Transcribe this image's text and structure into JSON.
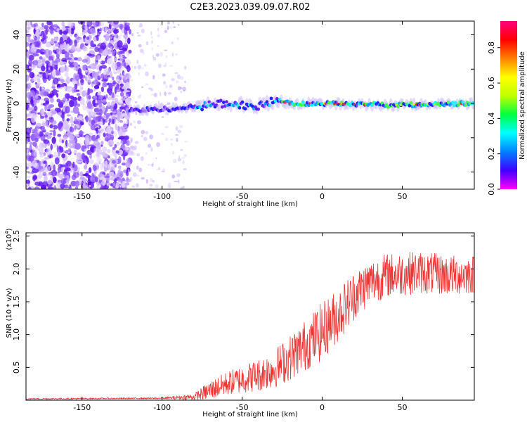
{
  "title": "C2E3.2023.039.09.07.R02",
  "chart_data": [
    {
      "type": "heatmap",
      "xlabel": "Height of straight line (km)",
      "ylabel": "Frequency (Hz)",
      "xlim": [
        -185,
        95
      ],
      "ylim": [
        -50,
        48
      ],
      "xticks": [
        -150,
        -100,
        -50,
        0,
        50
      ],
      "yticks": [
        -40,
        -20,
        0,
        20,
        40
      ],
      "colorbar": {
        "label": "Normalized spectral amplitude",
        "range": [
          0,
          0.95
        ],
        "ticks": [
          "0.0",
          "0.2",
          "0.4",
          "0.6",
          "0.8"
        ],
        "tick_values": [
          0,
          0.2,
          0.4,
          0.6,
          0.8
        ],
        "colormap": [
          "#ff00ff",
          "#4000ff",
          "#0080ff",
          "#00ffff",
          "#00ff40",
          "#c0ff00",
          "#ffff00",
          "#ff8000",
          "#ff0000",
          "#ff0080"
        ]
      },
      "features": {
        "noise_region_x": [
          -185,
          -120
        ],
        "sparse_region_x": [
          -140,
          -85
        ],
        "signal_band": [
          {
            "x": -120,
            "f": -4
          },
          {
            "x": -90,
            "f": -3
          },
          {
            "x": -60,
            "f": 0
          },
          {
            "x": -40,
            "f": -2
          },
          {
            "x": -30,
            "f": 2
          },
          {
            "x": -20,
            "f": 0
          },
          {
            "x": 0,
            "f": 0
          },
          {
            "x": 40,
            "f": -1
          },
          {
            "x": 95,
            "f": 0
          }
        ]
      }
    },
    {
      "type": "line",
      "xlabel": "Height of straight line (km)",
      "ylabel": "SNR (10 * v/v)",
      "y_multiplier": "(x10",
      "y_multiplier_exp": "4",
      "y_multiplier_close": ")",
      "xlim": [
        -185,
        95
      ],
      "ylim": [
        0,
        2.55
      ],
      "xticks": [
        -150,
        -100,
        -50,
        0,
        50
      ],
      "yticks": [
        0.5,
        1.0,
        1.5,
        2.0,
        2.5
      ],
      "ytick_labels": [
        "0.5",
        "1.0",
        "1.5",
        "2.0",
        "2.5"
      ],
      "color": "#ee3333",
      "trend": {
        "x": [
          -185,
          -100,
          -80,
          -70,
          -60,
          -50,
          -40,
          -30,
          -20,
          -10,
          0,
          10,
          20,
          30,
          40,
          60,
          80,
          95
        ],
        "y": [
          0.02,
          0.03,
          0.05,
          0.15,
          0.25,
          0.32,
          0.38,
          0.48,
          0.65,
          0.85,
          1.05,
          1.3,
          1.6,
          1.8,
          1.9,
          1.95,
          1.9,
          1.92
        ]
      },
      "noise_amplitude": {
        "x": [
          -185,
          -100,
          -80,
          -70,
          -40,
          -20,
          0,
          30,
          95
        ],
        "amp": [
          0.01,
          0.01,
          0.05,
          0.15,
          0.25,
          0.35,
          0.45,
          0.35,
          0.3
        ]
      }
    }
  ]
}
